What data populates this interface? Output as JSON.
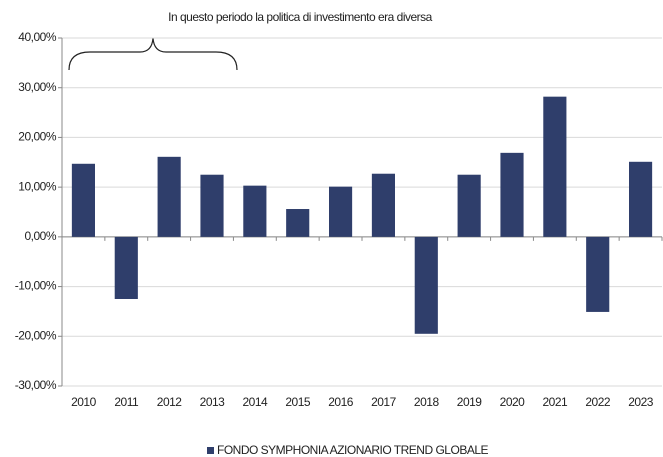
{
  "chart_data": {
    "type": "bar",
    "annotation": "In questo periodo la politica di investimento era diversa",
    "categories": [
      "2010",
      "2011",
      "2012",
      "2013",
      "2014",
      "2015",
      "2016",
      "2017",
      "2018",
      "2019",
      "2020",
      "2021",
      "2022",
      "2023"
    ],
    "series": [
      {
        "name": "FONDO SYMPHONIA AZIONARIO TREND GLOBALE",
        "color": "#2f3e6b",
        "values": [
          14.7,
          -12.5,
          16.1,
          12.5,
          10.3,
          5.6,
          10.1,
          12.7,
          -19.5,
          12.5,
          16.9,
          28.2,
          -15.1,
          15.1
        ]
      }
    ],
    "ylim": [
      -30,
      40
    ],
    "yticks": [
      {
        "value": -30,
        "label": "-30,00%"
      },
      {
        "value": -20,
        "label": "-20,00%"
      },
      {
        "value": -10,
        "label": "-10,00%"
      },
      {
        "value": 0,
        "label": "0,00%"
      },
      {
        "value": 10,
        "label": "10,00%"
      },
      {
        "value": 20,
        "label": "20,00%"
      },
      {
        "value": 30,
        "label": "30,00%"
      },
      {
        "value": 40,
        "label": "40,00%"
      }
    ],
    "grid": true,
    "legend": "bottom"
  }
}
